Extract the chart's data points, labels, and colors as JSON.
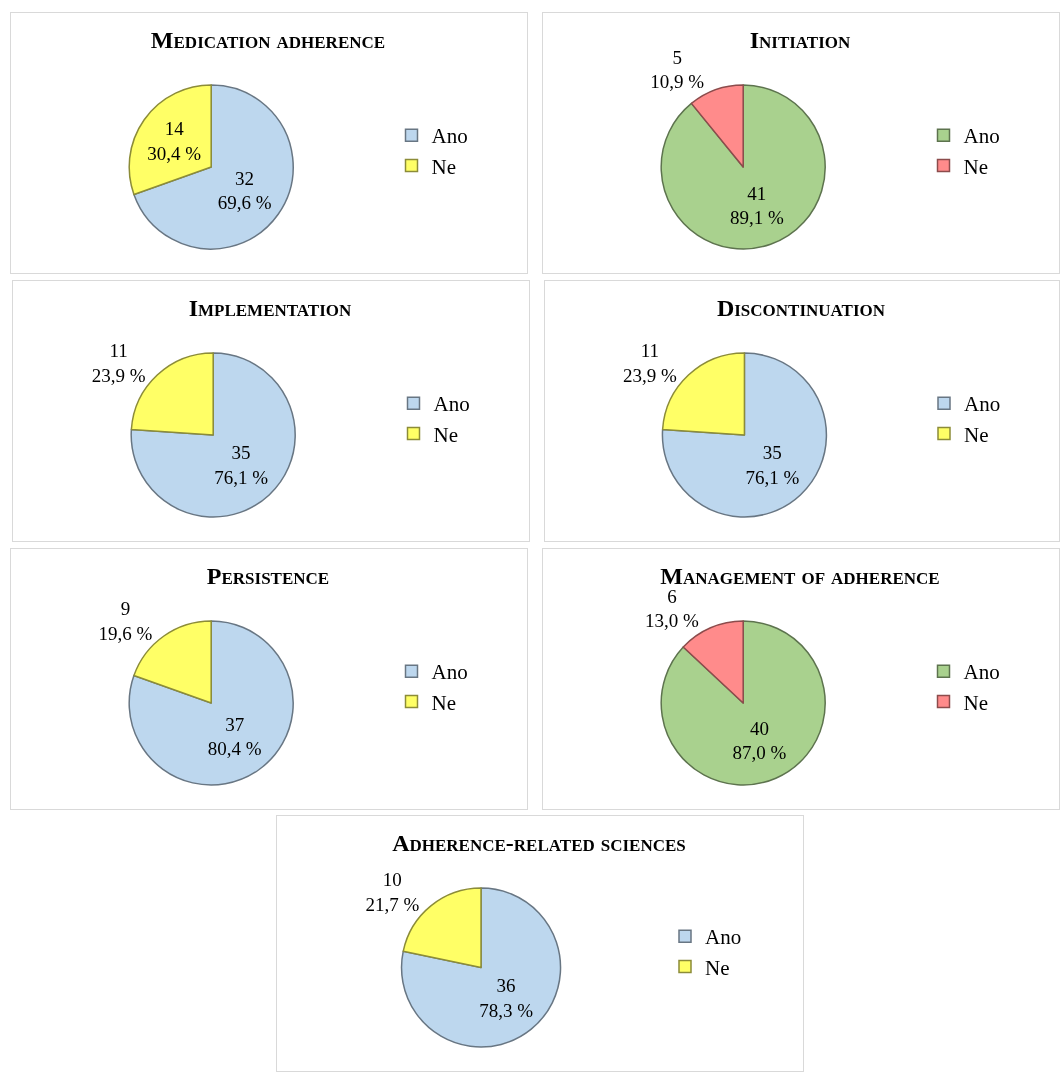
{
  "chart_data": [
    {
      "type": "pie",
      "title": "Medication adherence",
      "categories": [
        "Ano",
        "Ne"
      ],
      "values": [
        32,
        14
      ],
      "colors": [
        "#bdd7ee",
        "#ffff66"
      ],
      "value_labels": [
        "32\n69,6 %",
        "14\n30,4 %"
      ],
      "legend": "right"
    },
    {
      "type": "pie",
      "title": "Initiation",
      "categories": [
        "Ano",
        "Ne"
      ],
      "values": [
        41,
        5
      ],
      "colors": [
        "#a9d18e",
        "#ff8b8b"
      ],
      "value_labels": [
        "41\n89,1 %",
        "5\n10,9 %"
      ],
      "legend": "right"
    },
    {
      "type": "pie",
      "title": "Implementation",
      "categories": [
        "Ano",
        "Ne"
      ],
      "values": [
        35,
        11
      ],
      "colors": [
        "#bdd7ee",
        "#ffff66"
      ],
      "value_labels": [
        "35\n76,1 %",
        "11\n23,9 %"
      ],
      "legend": "right"
    },
    {
      "type": "pie",
      "title": "Discontinuation",
      "categories": [
        "Ano",
        "Ne"
      ],
      "values": [
        35,
        11
      ],
      "colors": [
        "#bdd7ee",
        "#ffff66"
      ],
      "value_labels": [
        "35\n76,1 %",
        "11\n23,9 %"
      ],
      "legend": "right"
    },
    {
      "type": "pie",
      "title": "Persistence",
      "categories": [
        "Ano",
        "Ne"
      ],
      "values": [
        37,
        9
      ],
      "colors": [
        "#bdd7ee",
        "#ffff66"
      ],
      "value_labels": [
        "37\n80,4 %",
        "9\n19,6 %"
      ],
      "legend": "right"
    },
    {
      "type": "pie",
      "title": "Management of adherence",
      "categories": [
        "Ano",
        "Ne"
      ],
      "values": [
        40,
        6
      ],
      "colors": [
        "#a9d18e",
        "#ff8b8b"
      ],
      "value_labels": [
        "40\n87,0 %",
        "6\n13,0 %"
      ],
      "legend": "right"
    },
    {
      "type": "pie",
      "title": "Adherence-related sciences",
      "categories": [
        "Ano",
        "Ne"
      ],
      "values": [
        36,
        10
      ],
      "colors": [
        "#bdd7ee",
        "#ffff66"
      ],
      "value_labels": [
        "36\n78,3 %",
        "10\n21,7 %"
      ],
      "legend": "right"
    }
  ]
}
